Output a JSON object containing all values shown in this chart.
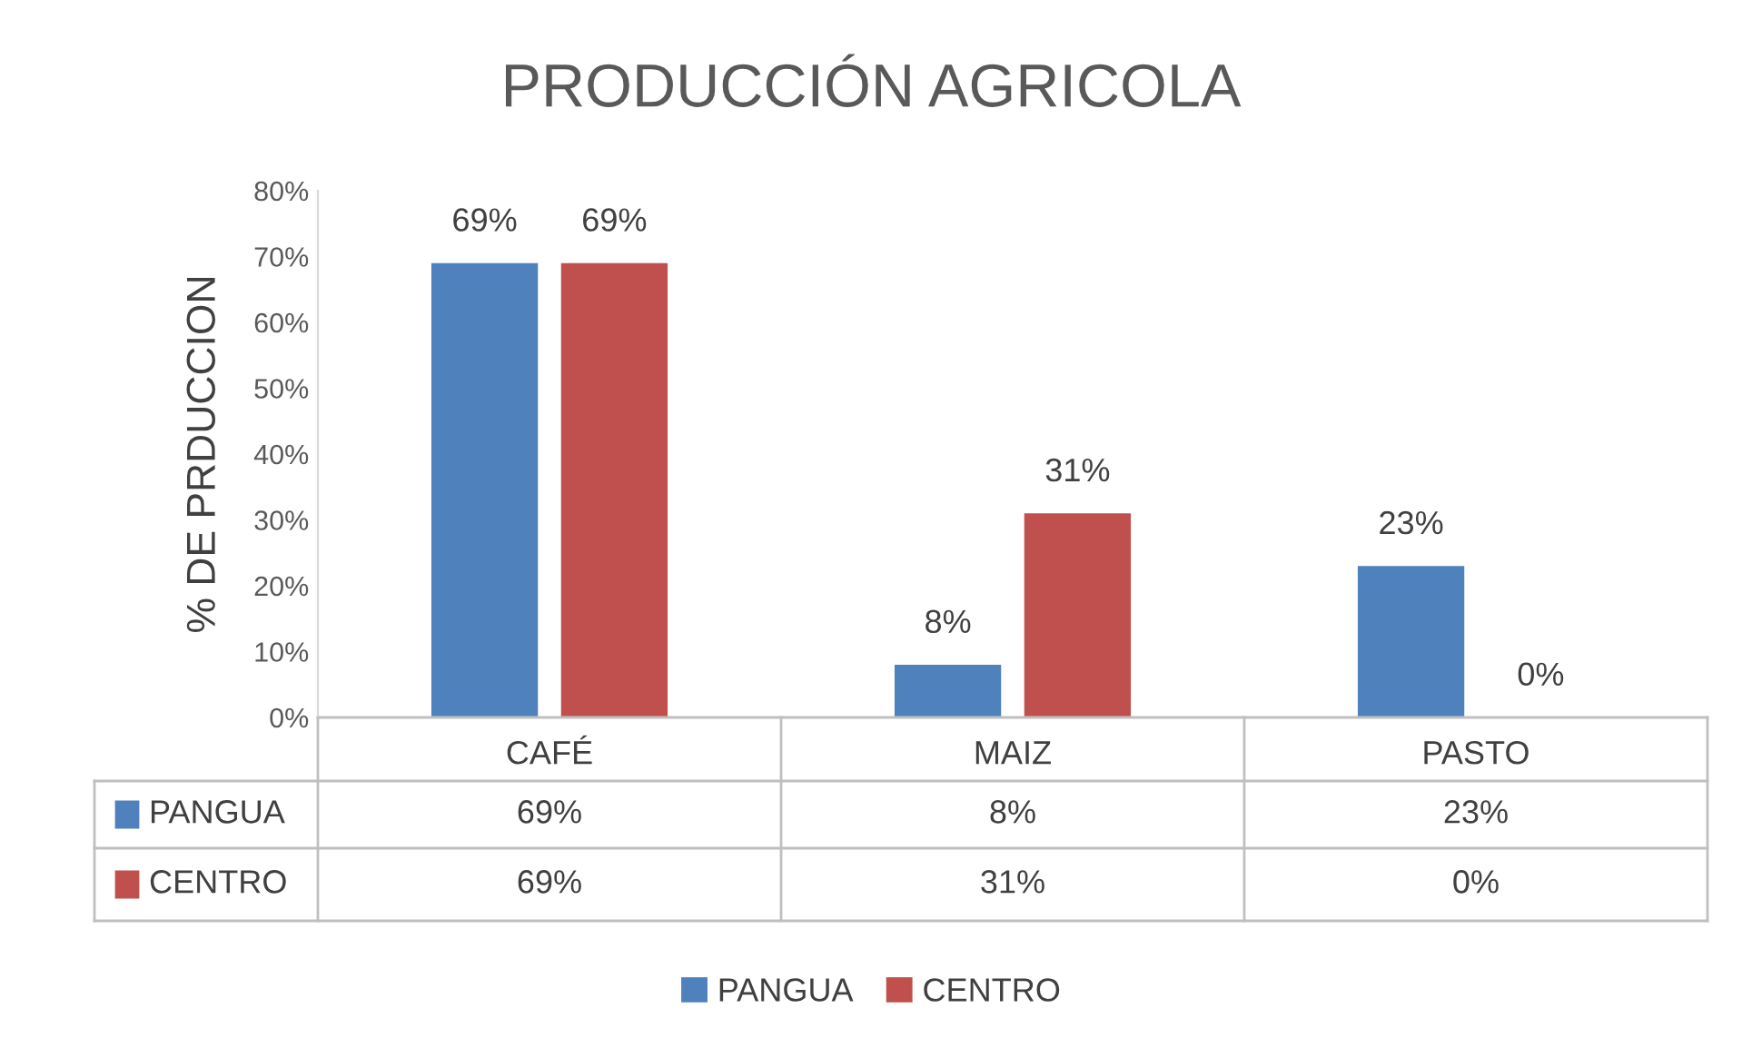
{
  "chart_data": {
    "type": "bar",
    "title": "PRODUCCIÓN AGRICOLA",
    "ylabel": "% DE PRDUCCION",
    "categories": [
      "CAFÉ",
      "MAIZ",
      "PASTO"
    ],
    "series": [
      {
        "name": "PANGUA",
        "color": "#4f81bd",
        "values": [
          69,
          8,
          23
        ],
        "value_labels": [
          "69%",
          "8%",
          "23%"
        ]
      },
      {
        "name": "CENTRO",
        "color": "#c0504d",
        "values": [
          69,
          31,
          0
        ],
        "value_labels": [
          "69%",
          "31%",
          "0%"
        ]
      }
    ],
    "ylim": [
      0,
      80
    ],
    "yticks": [
      {
        "value": 0,
        "label": "0%"
      },
      {
        "value": 10,
        "label": "10%"
      },
      {
        "value": 20,
        "label": "20%"
      },
      {
        "value": 30,
        "label": "30%"
      },
      {
        "value": 40,
        "label": "40%"
      },
      {
        "value": 50,
        "label": "50%"
      },
      {
        "value": 60,
        "label": "60%"
      },
      {
        "value": 70,
        "label": "70%"
      },
      {
        "value": 80,
        "label": "80%"
      }
    ],
    "grid": false,
    "legend": "bottom"
  }
}
